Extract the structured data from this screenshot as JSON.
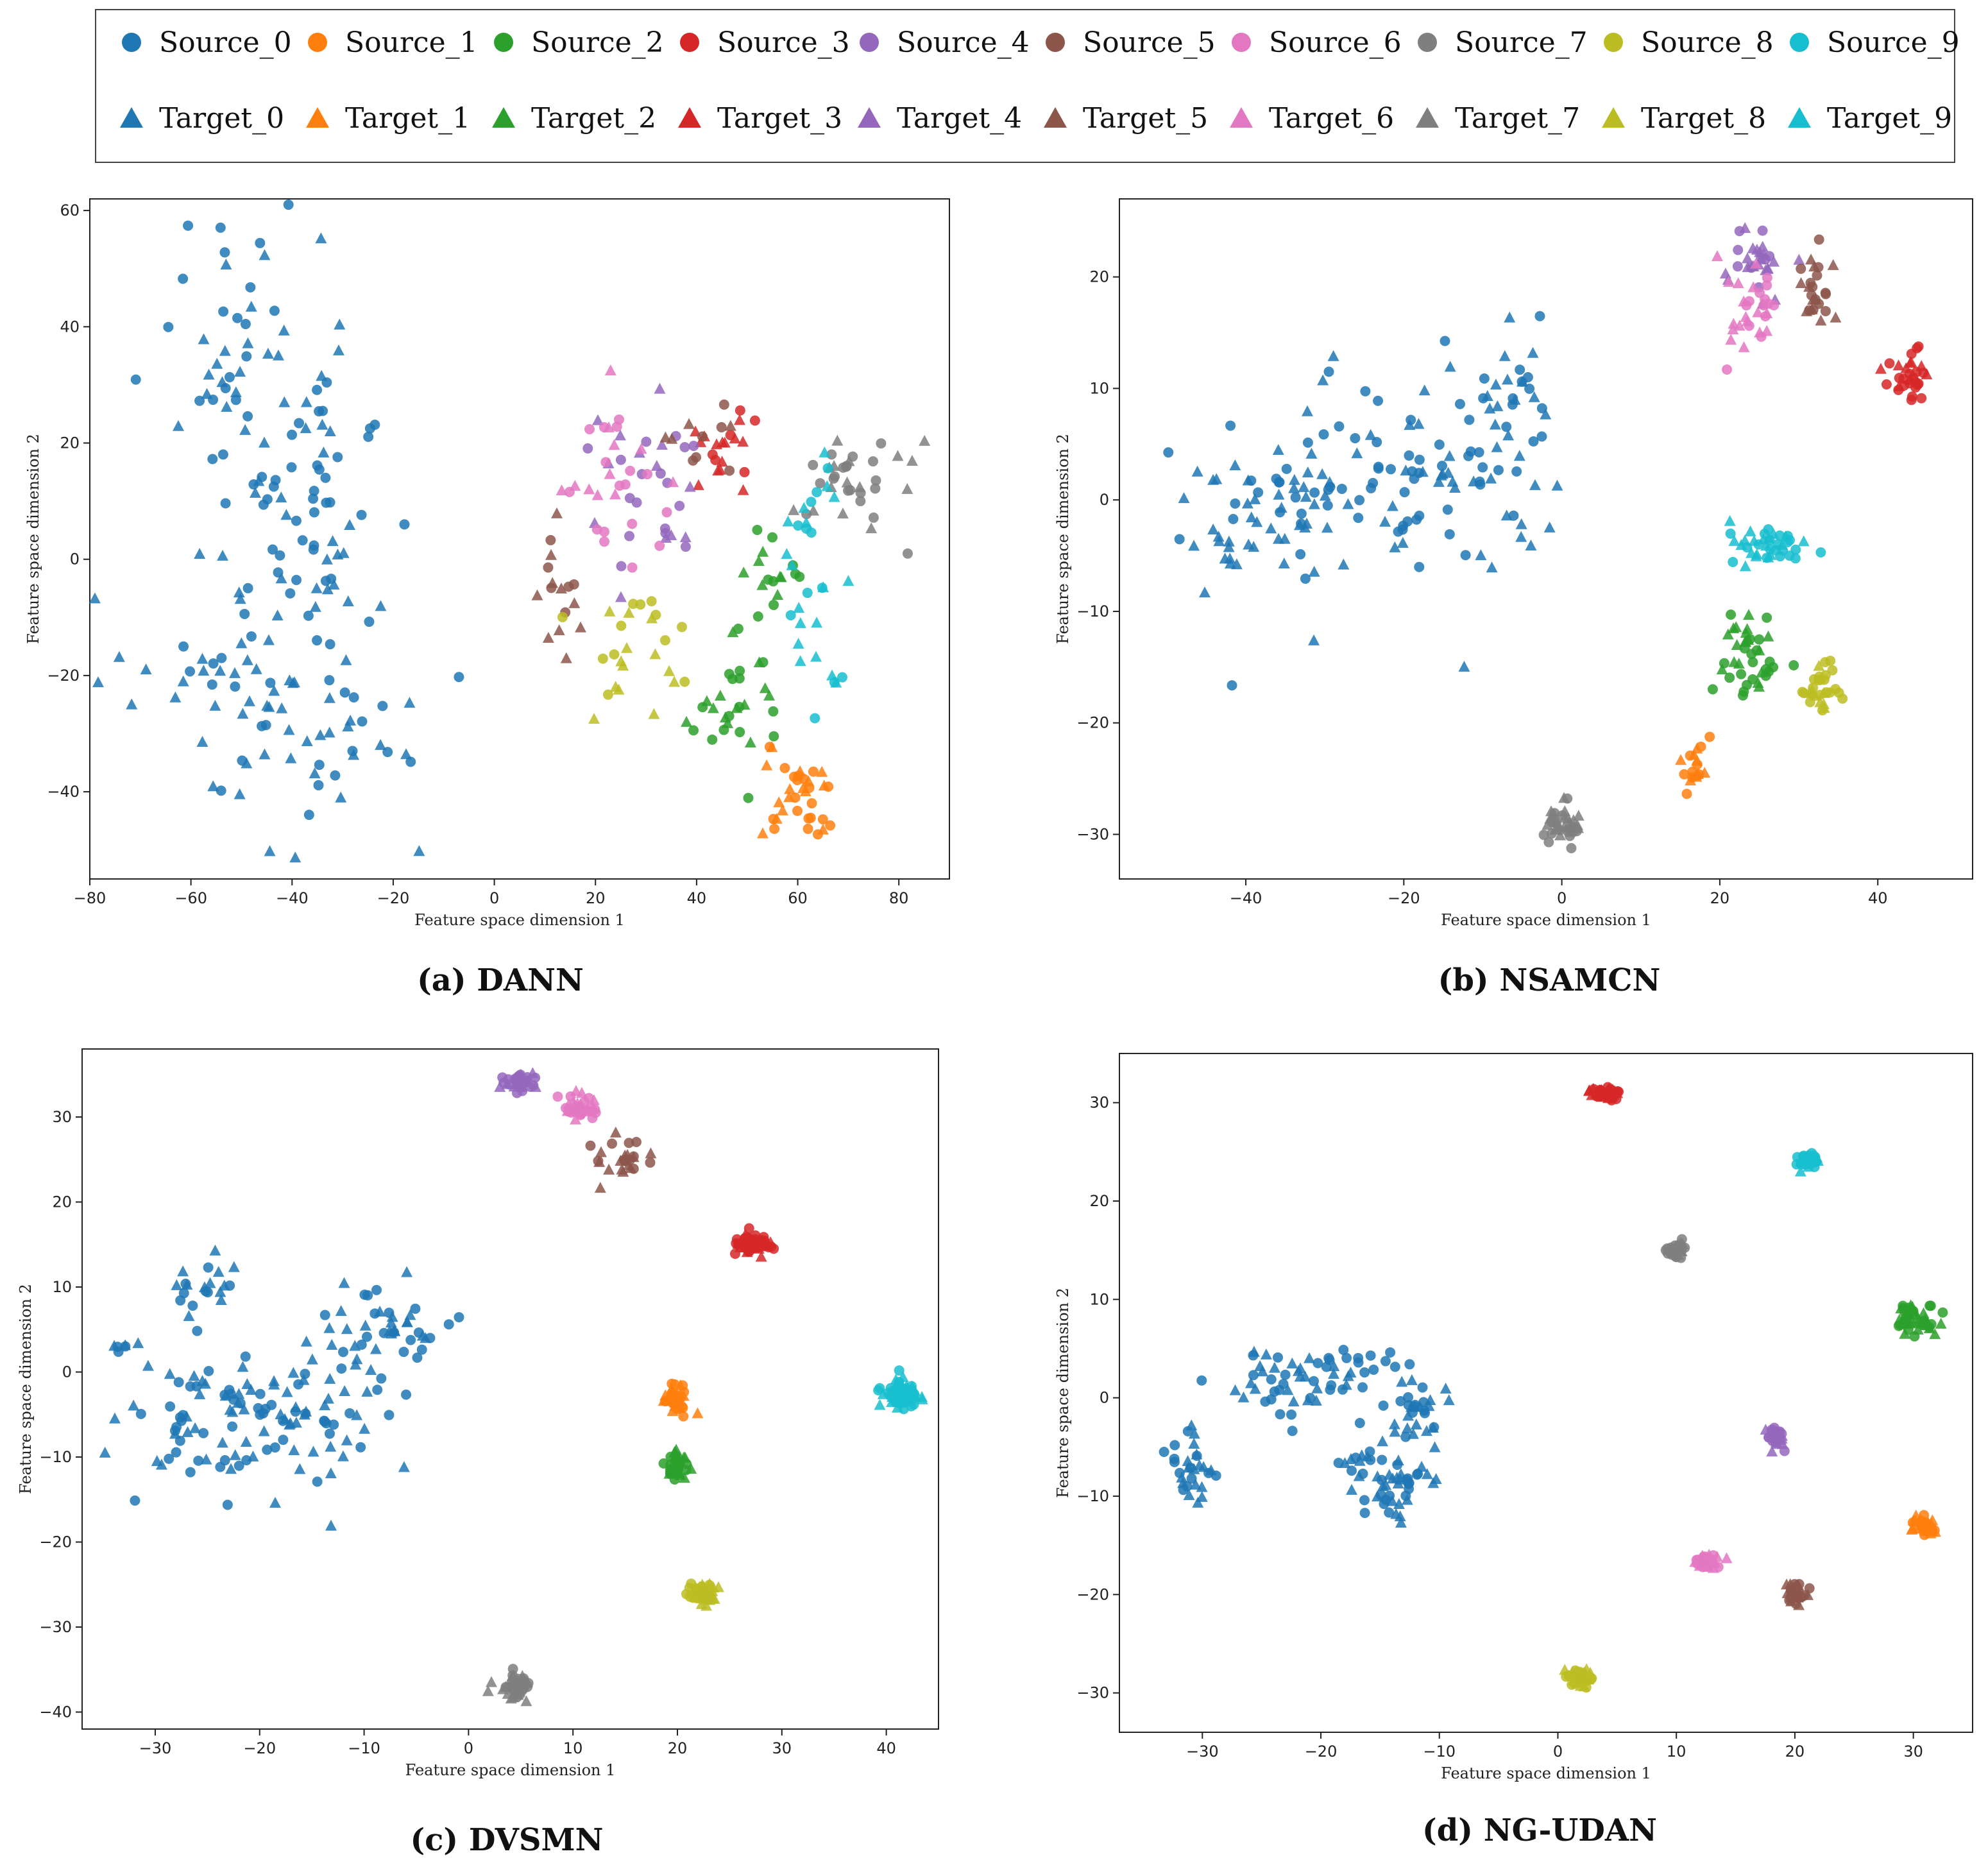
{
  "legend": {
    "source": [
      "Source_0",
      "Source_1",
      "Source_2",
      "Source_3",
      "Source_4",
      "Source_5",
      "Source_6",
      "Source_7",
      "Source_8",
      "Source_9"
    ],
    "target": [
      "Target_0",
      "Target_1",
      "Target_2",
      "Target_3",
      "Target_4",
      "Target_5",
      "Target_6",
      "Target_7",
      "Target_8",
      "Target_9"
    ]
  },
  "class_colors": [
    "#1f77b4",
    "#ff7f0e",
    "#2ca02c",
    "#d62728",
    "#9467bd",
    "#8c564b",
    "#e377c2",
    "#7f7f7f",
    "#bcbd22",
    "#17becf"
  ],
  "chart_data": [
    {
      "type": "scatter",
      "caption": "(a) DANN",
      "xlabel": "Feature space dimension 1",
      "ylabel": "Feature space dimension 2",
      "xlim": [
        -80,
        90
      ],
      "ylim": [
        -55,
        62
      ],
      "xticks": [
        -80,
        -60,
        -40,
        -20,
        0,
        20,
        40,
        60,
        80
      ],
      "yticks": [
        -40,
        -20,
        0,
        20,
        40,
        60
      ],
      "clusters": [
        {
          "cls": 0,
          "cx": -46,
          "cy": 30,
          "sx": 11,
          "sy": 13,
          "n": 70
        },
        {
          "cls": 0,
          "cx": -43,
          "cy": -25,
          "sx": 13,
          "sy": 13,
          "n": 90
        },
        {
          "cls": 0,
          "cx": -38,
          "cy": 5,
          "sx": 9,
          "sy": 8,
          "n": 30
        },
        {
          "cls": 1,
          "cx": 60,
          "cy": -41,
          "sx": 3,
          "sy": 4,
          "n": 35
        },
        {
          "cls": 2,
          "cx": 48,
          "cy": -25,
          "sx": 5,
          "sy": 7,
          "n": 30
        },
        {
          "cls": 2,
          "cx": 55,
          "cy": -3,
          "sx": 4,
          "sy": 4,
          "n": 15
        },
        {
          "cls": 3,
          "cx": 45,
          "cy": 17,
          "sx": 3,
          "sy": 4,
          "n": 20
        },
        {
          "cls": 4,
          "cx": 30,
          "cy": 12,
          "sx": 6,
          "sy": 8,
          "n": 30
        },
        {
          "cls": 5,
          "cx": 13,
          "cy": -4,
          "sx": 2,
          "sy": 6,
          "n": 16
        },
        {
          "cls": 5,
          "cx": 40,
          "cy": 20,
          "sx": 5,
          "sy": 4,
          "n": 10
        },
        {
          "cls": 6,
          "cx": 24,
          "cy": 12,
          "sx": 5,
          "sy": 8,
          "n": 28
        },
        {
          "cls": 7,
          "cx": 72,
          "cy": 12,
          "sx": 6,
          "sy": 5,
          "n": 35
        },
        {
          "cls": 8,
          "cx": 28,
          "cy": -15,
          "sx": 6,
          "sy": 7,
          "n": 25
        },
        {
          "cls": 9,
          "cx": 62,
          "cy": -3,
          "sx": 4,
          "sy": 10,
          "n": 30
        }
      ]
    },
    {
      "type": "scatter",
      "caption": "(b) NSAMCN",
      "xlabel": "Feature space dimension 1",
      "ylabel": "Feature space dimension 2",
      "xlim": [
        -56,
        52
      ],
      "ylim": [
        -34,
        27
      ],
      "xticks": [
        -40,
        -20,
        0,
        20,
        40
      ],
      "yticks": [
        -30,
        -20,
        -10,
        0,
        10,
        20
      ],
      "clusters": [
        {
          "cls": 0,
          "cx": -38,
          "cy": -1,
          "sx": 6,
          "sy": 4,
          "n": 70
        },
        {
          "cls": 0,
          "cx": -18,
          "cy": 3,
          "sx": 7,
          "sy": 5,
          "n": 80
        },
        {
          "cls": 0,
          "cx": -6,
          "cy": 8,
          "sx": 2.5,
          "sy": 4,
          "n": 30
        },
        {
          "cls": 1,
          "cx": 17,
          "cy": -24,
          "sx": 1,
          "sy": 1.2,
          "n": 18
        },
        {
          "cls": 2,
          "cx": 24,
          "cy": -14,
          "sx": 2,
          "sy": 1.8,
          "n": 40
        },
        {
          "cls": 3,
          "cx": 44,
          "cy": 11,
          "sx": 1.3,
          "sy": 1.2,
          "n": 30
        },
        {
          "cls": 4,
          "cx": 25,
          "cy": 22,
          "sx": 1.6,
          "sy": 1.5,
          "n": 30
        },
        {
          "cls": 5,
          "cx": 32,
          "cy": 19,
          "sx": 1.2,
          "sy": 2,
          "n": 25
        },
        {
          "cls": 6,
          "cx": 24,
          "cy": 17,
          "sx": 1.5,
          "sy": 2.5,
          "n": 30
        },
        {
          "cls": 7,
          "cx": 0,
          "cy": -29,
          "sx": 1.6,
          "sy": 1.1,
          "n": 35
        },
        {
          "cls": 8,
          "cx": 33,
          "cy": -17,
          "sx": 1.3,
          "sy": 1.3,
          "n": 30
        },
        {
          "cls": 9,
          "cx": 26,
          "cy": -4,
          "sx": 2.3,
          "sy": 1,
          "n": 40
        }
      ]
    },
    {
      "type": "scatter",
      "caption": "(c) DVSMN",
      "xlabel": "Feature space dimension 1",
      "ylabel": "Feature space dimension 2",
      "xlim": [
        -37,
        45
      ],
      "ylim": [
        -42,
        38
      ],
      "xticks": [
        -30,
        -20,
        -10,
        0,
        10,
        20,
        30,
        40
      ],
      "yticks": [
        -40,
        -30,
        -20,
        -10,
        0,
        10,
        20,
        30
      ],
      "clusters": [
        {
          "cls": 0,
          "cx": -20,
          "cy": -5,
          "sx": 6,
          "sy": 5,
          "n": 120
        },
        {
          "cls": 0,
          "cx": -8,
          "cy": 5,
          "sx": 3,
          "sy": 3,
          "n": 45
        },
        {
          "cls": 0,
          "cx": -25,
          "cy": 11,
          "sx": 1.5,
          "sy": 2,
          "n": 20
        },
        {
          "cls": 0,
          "cx": -33,
          "cy": 3,
          "sx": 0.8,
          "sy": 1.2,
          "n": 6
        },
        {
          "cls": 1,
          "cx": 20,
          "cy": -3,
          "sx": 0.6,
          "sy": 0.8,
          "n": 40
        },
        {
          "cls": 2,
          "cx": 20,
          "cy": -11,
          "sx": 0.5,
          "sy": 0.9,
          "n": 40
        },
        {
          "cls": 3,
          "cx": 27,
          "cy": 15,
          "sx": 0.9,
          "sy": 0.6,
          "n": 50
        },
        {
          "cls": 4,
          "cx": 5,
          "cy": 34,
          "sx": 0.8,
          "sy": 0.7,
          "n": 40
        },
        {
          "cls": 5,
          "cx": 15,
          "cy": 25,
          "sx": 1.5,
          "sy": 1.2,
          "n": 25
        },
        {
          "cls": 6,
          "cx": 11,
          "cy": 31,
          "sx": 1.1,
          "sy": 0.8,
          "n": 35
        },
        {
          "cls": 7,
          "cx": 4.5,
          "cy": -37,
          "sx": 0.8,
          "sy": 0.8,
          "n": 50
        },
        {
          "cls": 8,
          "cx": 22.5,
          "cy": -26,
          "sx": 0.7,
          "sy": 0.6,
          "n": 50
        },
        {
          "cls": 9,
          "cx": 41.5,
          "cy": -2.5,
          "sx": 1,
          "sy": 0.8,
          "n": 60
        }
      ]
    },
    {
      "type": "scatter",
      "caption": "(d) NG-UDAN",
      "xlabel": "Feature space dimension 1",
      "ylabel": "Feature space dimension 2",
      "xlim": [
        -37,
        35
      ],
      "ylim": [
        -34,
        35
      ],
      "xticks": [
        -30,
        -20,
        -10,
        0,
        10,
        20,
        30
      ],
      "yticks": [
        -30,
        -20,
        -10,
        0,
        10,
        20,
        30
      ],
      "clusters": [
        {
          "cls": 0,
          "cx": -21,
          "cy": 2,
          "sx": 3,
          "sy": 2,
          "n": 60
        },
        {
          "cls": 0,
          "cx": -14,
          "cy": -8,
          "sx": 2.5,
          "sy": 2.5,
          "n": 60
        },
        {
          "cls": 0,
          "cx": -12,
          "cy": 0,
          "sx": 1.5,
          "sy": 2,
          "n": 25
        },
        {
          "cls": 0,
          "cx": -31,
          "cy": -7,
          "sx": 1.2,
          "sy": 2,
          "n": 30
        },
        {
          "cls": 1,
          "cx": 31,
          "cy": -13,
          "sx": 0.5,
          "sy": 0.4,
          "n": 40
        },
        {
          "cls": 2,
          "cx": 30,
          "cy": 8,
          "sx": 1,
          "sy": 0.6,
          "n": 50
        },
        {
          "cls": 3,
          "cx": 4,
          "cy": 31,
          "sx": 0.6,
          "sy": 0.4,
          "n": 40
        },
        {
          "cls": 4,
          "cx": 18.5,
          "cy": -4,
          "sx": 0.4,
          "sy": 0.6,
          "n": 40
        },
        {
          "cls": 5,
          "cx": 20,
          "cy": -20,
          "sx": 0.4,
          "sy": 0.5,
          "n": 35
        },
        {
          "cls": 6,
          "cx": 12.5,
          "cy": -16.5,
          "sx": 0.6,
          "sy": 0.4,
          "n": 35
        },
        {
          "cls": 7,
          "cx": 10,
          "cy": 15,
          "sx": 0.4,
          "sy": 0.4,
          "n": 35
        },
        {
          "cls": 8,
          "cx": 2,
          "cy": -28.5,
          "sx": 0.6,
          "sy": 0.5,
          "n": 40
        },
        {
          "cls": 9,
          "cx": 21,
          "cy": 24,
          "sx": 0.5,
          "sy": 0.4,
          "n": 45
        }
      ]
    }
  ]
}
